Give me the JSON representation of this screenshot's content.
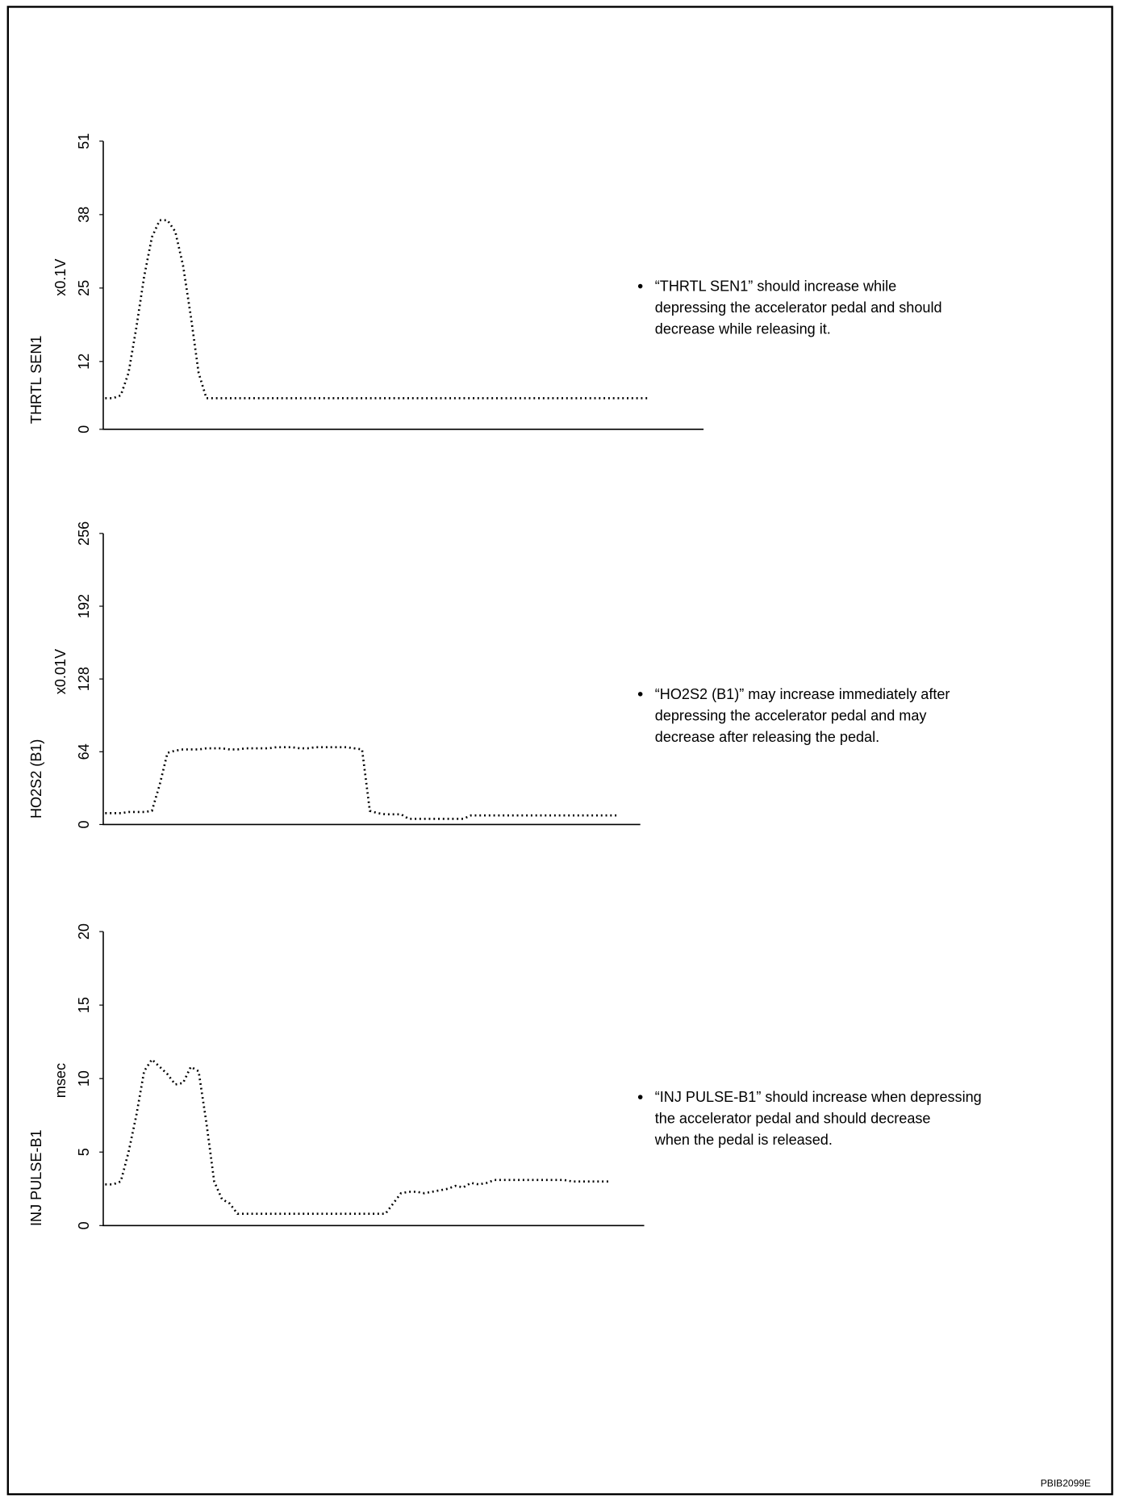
{
  "chart_data": [
    {
      "type": "line",
      "y_label": "THRTL SEN1",
      "unit": "x0.1V",
      "ylim": [
        0,
        51
      ],
      "yticks": [
        0,
        12,
        25,
        38,
        51
      ],
      "color": "#000000",
      "values": [
        5.5,
        5.5,
        6,
        10,
        18,
        27,
        34,
        37,
        37,
        35,
        29,
        20,
        10,
        5.5,
        5.5,
        5.5,
        5.5,
        5.5,
        5.5,
        5.5,
        5.5,
        5.5,
        5.5,
        5.5,
        5.5,
        5.5,
        5.5,
        5.5,
        5.5,
        5.5,
        5.5,
        5.5,
        5.5,
        5.5,
        5.5,
        5.5,
        5.5,
        5.5,
        5.5,
        5.5,
        5.5,
        5.5,
        5.5,
        5.5,
        5.5,
        5.5,
        5.5,
        5.5,
        5.5,
        5.5,
        5.5,
        5.5,
        5.5,
        5.5,
        5.5,
        5.5,
        5.5,
        5.5,
        5.5,
        5.5,
        5.5,
        5.5,
        5.5,
        5.5,
        5.5,
        5.5,
        5.5,
        5.5,
        5.5,
        5.5,
        5.5
      ],
      "note": [
        "“THRTL SEN1” should increase while",
        "depressing the accelerator pedal and should",
        "decrease while releasing it."
      ]
    },
    {
      "type": "line",
      "y_label": "HO2S2 (B1)",
      "unit": "x0.01V",
      "ylim": [
        0,
        256
      ],
      "yticks": [
        0,
        64,
        128,
        192,
        256
      ],
      "color": "#000000",
      "values": [
        10,
        10,
        10,
        11,
        11,
        11,
        12,
        35,
        63,
        65,
        66,
        66,
        66,
        67,
        67,
        67,
        66,
        66,
        67,
        67,
        67,
        67,
        68,
        68,
        68,
        67,
        67,
        68,
        68,
        68,
        68,
        68,
        67,
        66,
        12,
        10,
        9,
        9,
        9,
        5,
        5,
        5,
        5,
        5,
        5,
        5,
        5,
        8,
        8,
        8,
        8,
        8,
        8,
        8,
        8,
        8,
        8,
        8,
        8,
        8,
        8,
        8,
        8,
        8,
        8,
        8,
        8
      ],
      "note": [
        "“HO2S2 (B1)” may increase immediately after",
        "depressing the accelerator pedal and may",
        "decrease after releasing the pedal."
      ]
    },
    {
      "type": "line",
      "y_label": "INJ PULSE-B1",
      "unit": "msec",
      "ylim": [
        0,
        20
      ],
      "yticks": [
        0,
        5,
        10,
        15,
        20
      ],
      "color": "#000000",
      "values": [
        2.8,
        2.8,
        3,
        5,
        7.5,
        10.5,
        11.3,
        10.8,
        10.3,
        9.6,
        9.7,
        10.8,
        10.5,
        7,
        3,
        1.8,
        1.5,
        0.8,
        0.8,
        0.8,
        0.8,
        0.8,
        0.8,
        0.8,
        0.8,
        0.8,
        0.8,
        0.8,
        0.8,
        0.8,
        0.8,
        0.8,
        0.8,
        0.8,
        0.8,
        0.8,
        0.8,
        1.5,
        2.2,
        2.3,
        2.3,
        2.2,
        2.3,
        2.4,
        2.5,
        2.7,
        2.6,
        2.9,
        2.8,
        2.9,
        3.1,
        3.1,
        3.1,
        3.1,
        3.1,
        3.1,
        3.1,
        3.1,
        3.1,
        3.1,
        3,
        3,
        3,
        3,
        3,
        3
      ],
      "note": [
        "“INJ PULSE-B1” should increase when depressing",
        "the accelerator pedal and should decrease",
        "when the pedal is released."
      ]
    }
  ],
  "code": "PBIB2099E"
}
